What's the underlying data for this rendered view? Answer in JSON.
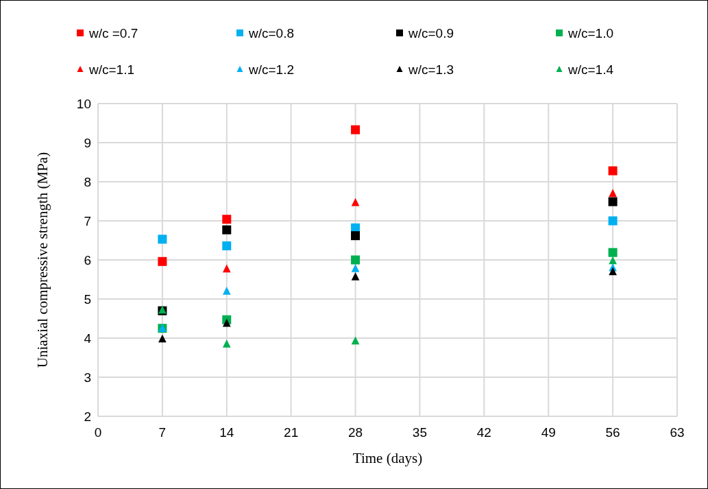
{
  "chart_data": {
    "type": "scatter",
    "xlabel": "Time (days)",
    "ylabel": "Uniaxial compressive strength (MPa)",
    "x": [
      7,
      14,
      28,
      56
    ],
    "xlim": [
      0,
      63
    ],
    "xticks": [
      0,
      7,
      14,
      21,
      28,
      35,
      42,
      49,
      56,
      63
    ],
    "ylim": [
      2,
      10
    ],
    "yticks": [
      2,
      3,
      4,
      5,
      6,
      7,
      8,
      9,
      10
    ],
    "grid": true,
    "legend": "top",
    "series": [
      {
        "name": "w/c =0.7",
        "color": "#ff0000",
        "marker": "square",
        "values": [
          5.96,
          7.04,
          9.33,
          8.28
        ]
      },
      {
        "name": "w/c=0.8",
        "color": "#00b0f0",
        "marker": "square",
        "values": [
          6.53,
          6.36,
          6.82,
          7.0
        ]
      },
      {
        "name": "w/c=0.9",
        "color": "#000000",
        "marker": "square",
        "values": [
          4.7,
          6.77,
          6.62,
          7.49
        ]
      },
      {
        "name": "w/c=1.0",
        "color": "#00b050",
        "marker": "square",
        "values": [
          4.25,
          4.47,
          6.0,
          6.19
        ]
      },
      {
        "name": "w/c=1.1",
        "color": "#ff0000",
        "marker": "triangle",
        "values": [
          null,
          5.77,
          7.47,
          7.7
        ]
      },
      {
        "name": "w/c=1.2",
        "color": "#00b0f0",
        "marker": "triangle",
        "values": [
          4.25,
          5.2,
          5.78,
          5.8
        ]
      },
      {
        "name": "w/c=1.3",
        "color": "#000000",
        "marker": "triangle",
        "values": [
          3.98,
          4.38,
          5.57,
          5.7
        ]
      },
      {
        "name": "w/c=1.4",
        "color": "#00b050",
        "marker": "triangle",
        "values": [
          4.72,
          3.85,
          3.93,
          5.98
        ]
      }
    ]
  }
}
